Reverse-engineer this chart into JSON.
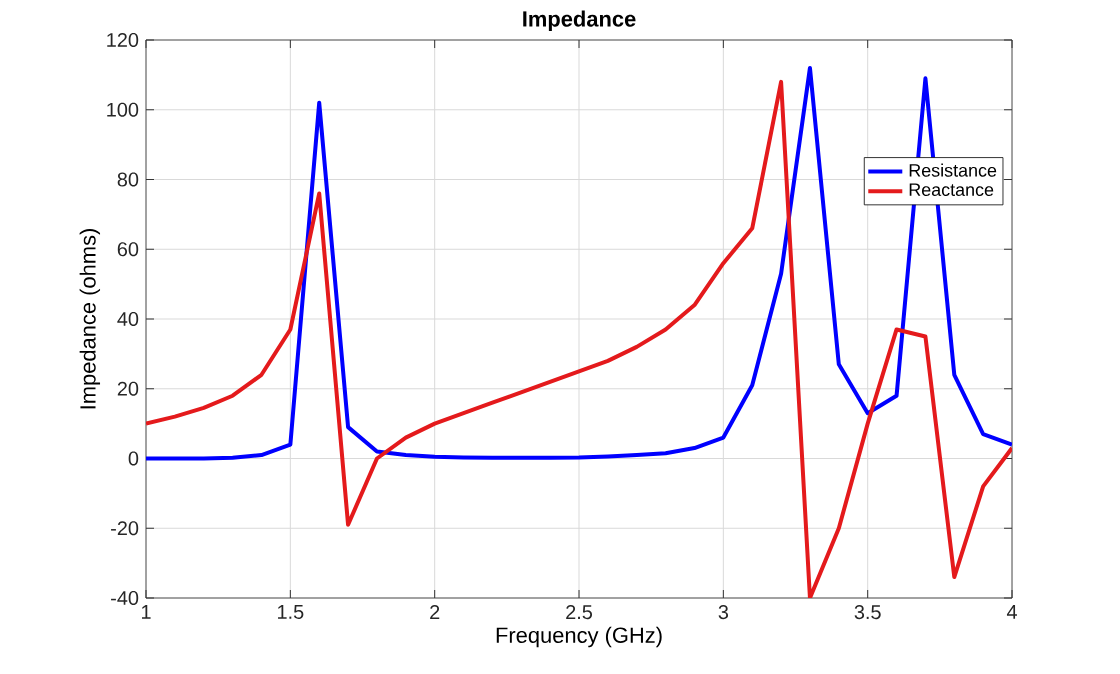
{
  "chart_data": {
    "type": "line",
    "title": "Impedance",
    "xlabel": "Frequency (GHz)",
    "ylabel": "Impedance (ohms)",
    "x": [
      1,
      1.1,
      1.2,
      1.3,
      1.4,
      1.5,
      1.6,
      1.7,
      1.8,
      1.9,
      2,
      2.1,
      2.2,
      2.3,
      2.4,
      2.5,
      2.6,
      2.7,
      2.8,
      2.9,
      3,
      3.1,
      3.2,
      3.3,
      3.4,
      3.5,
      3.6,
      3.7,
      3.8,
      3.9,
      4
    ],
    "series": [
      {
        "name": "Resistance",
        "color": "#0000ff",
        "values": [
          0,
          0,
          0,
          0.2,
          1,
          4,
          102,
          9,
          2,
          1,
          0.5,
          0.3,
          0.2,
          0.2,
          0.2,
          0.3,
          0.6,
          1,
          1.5,
          3,
          6,
          21,
          53,
          112,
          27,
          13,
          18,
          109,
          24,
          7,
          4
        ]
      },
      {
        "name": "Reactance",
        "color": "#e41a1c",
        "values": [
          10,
          12,
          14.5,
          18,
          24,
          37,
          76,
          -19,
          0,
          6,
          10,
          13,
          16,
          19,
          22,
          25,
          28,
          32,
          37,
          44,
          56,
          66,
          108,
          -40,
          -20,
          10,
          37,
          35,
          -34,
          -8,
          3
        ]
      }
    ],
    "xlim": [
      1,
      4
    ],
    "ylim": [
      -40,
      120
    ],
    "xticks": [
      1,
      1.5,
      2,
      2.5,
      3,
      3.5,
      4
    ],
    "yticks": [
      -40,
      -20,
      0,
      20,
      40,
      60,
      80,
      100,
      120
    ],
    "grid": true,
    "legend": "top right",
    "marker": "none",
    "line_style": "solid"
  }
}
